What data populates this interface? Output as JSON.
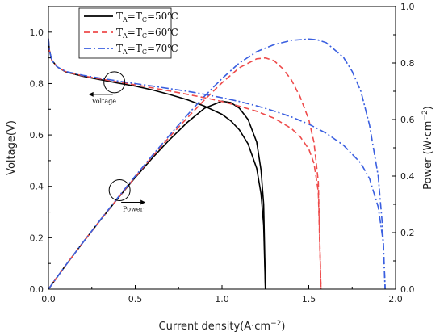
{
  "chart_data": {
    "type": "line",
    "xlabel": "Current density(A·cm",
    "xlabel_sup": "−2",
    "xlabel_close": ")",
    "ylabel_left": "Voltage(V)",
    "ylabel_right": "Power (W·cm",
    "ylabel_right_sup": "−2",
    "ylabel_right_close": ")",
    "xlim": [
      0,
      2.0
    ],
    "ylim_left": [
      0,
      1.1
    ],
    "ylim_right": [
      0,
      1.0
    ],
    "xticks": [
      "0.0",
      "0.5",
      "1.0",
      "1.5",
      "2.0"
    ],
    "yticks_left": [
      "0.0",
      "0.2",
      "0.4",
      "0.6",
      "0.8",
      "1.0"
    ],
    "yticks_right": [
      "0.0",
      "0.2",
      "0.4",
      "0.6",
      "0.8",
      "1.0"
    ],
    "xtick_values": [
      0,
      0.5,
      1.0,
      1.5,
      2.0
    ],
    "ytick_values_left": [
      0,
      0.2,
      0.4,
      0.6,
      0.8,
      1.0
    ],
    "ytick_values_right": [
      0,
      0.2,
      0.4,
      0.6,
      0.8,
      1.0
    ],
    "legend_position": "top-left",
    "legend": [
      {
        "label": "T",
        "sub1": "A",
        "mid": "=T",
        "sub2": "C",
        "rest": "=50℃",
        "color": "#000000",
        "dash": "solid"
      },
      {
        "label": "T",
        "sub1": "A",
        "mid": "=T",
        "sub2": "C",
        "rest": "=60℃",
        "color": "#ee4b4b",
        "dash": "dash"
      },
      {
        "label": "T",
        "sub1": "A",
        "mid": "=T",
        "sub2": "C",
        "rest": "=70℃",
        "color": "#3a5fe0",
        "dash": "dashdot"
      }
    ],
    "annotations": [
      {
        "text": "Voltage",
        "x": 0.38,
        "y_left": 0.805,
        "arrow": "left"
      },
      {
        "text": "Power",
        "x": 0.41,
        "y_left": 0.385,
        "arrow": "right"
      }
    ],
    "series": [
      {
        "axis": "left",
        "color": "#000000",
        "dash": "solid",
        "x": [
          0,
          0.005,
          0.02,
          0.05,
          0.1,
          0.2,
          0.3,
          0.4,
          0.5,
          0.6,
          0.7,
          0.8,
          0.9,
          1.0,
          1.05,
          1.1,
          1.15,
          1.2,
          1.225,
          1.24,
          1.25
        ],
        "y": [
          0.975,
          0.93,
          0.89,
          0.865,
          0.845,
          0.828,
          0.815,
          0.802,
          0.79,
          0.775,
          0.757,
          0.737,
          0.712,
          0.68,
          0.655,
          0.62,
          0.565,
          0.47,
          0.37,
          0.25,
          0.0
        ]
      },
      {
        "axis": "right",
        "color": "#000000",
        "dash": "solid",
        "x": [
          0,
          0.1,
          0.2,
          0.3,
          0.4,
          0.5,
          0.6,
          0.7,
          0.8,
          0.9,
          1.0,
          1.05,
          1.1,
          1.15,
          1.2,
          1.225,
          1.24,
          1.25
        ],
        "y": [
          0,
          0.085,
          0.166,
          0.245,
          0.321,
          0.395,
          0.465,
          0.53,
          0.59,
          0.64,
          0.665,
          0.66,
          0.64,
          0.6,
          0.52,
          0.42,
          0.3,
          0.0
        ]
      },
      {
        "axis": "left",
        "color": "#ee4b4b",
        "dash": "dash",
        "x": [
          0,
          0.005,
          0.02,
          0.05,
          0.1,
          0.2,
          0.3,
          0.4,
          0.5,
          0.6,
          0.7,
          0.8,
          0.9,
          1.0,
          1.1,
          1.2,
          1.3,
          1.4,
          1.45,
          1.5,
          1.53,
          1.555,
          1.57
        ],
        "y": [
          0.975,
          0.93,
          0.89,
          0.865,
          0.846,
          0.83,
          0.818,
          0.806,
          0.795,
          0.783,
          0.771,
          0.758,
          0.745,
          0.73,
          0.712,
          0.692,
          0.665,
          0.625,
          0.593,
          0.545,
          0.49,
          0.38,
          0.0
        ]
      },
      {
        "axis": "right",
        "color": "#ee4b4b",
        "dash": "dash",
        "x": [
          0,
          0.1,
          0.2,
          0.3,
          0.4,
          0.5,
          0.6,
          0.7,
          0.8,
          0.9,
          1.0,
          1.1,
          1.2,
          1.25,
          1.3,
          1.35,
          1.4,
          1.45,
          1.5,
          1.53,
          1.555,
          1.57
        ],
        "y": [
          0,
          0.085,
          0.166,
          0.245,
          0.322,
          0.397,
          0.47,
          0.54,
          0.606,
          0.67,
          0.73,
          0.783,
          0.815,
          0.818,
          0.808,
          0.78,
          0.74,
          0.68,
          0.6,
          0.52,
          0.38,
          0.0
        ]
      },
      {
        "axis": "left",
        "color": "#3a5fe0",
        "dash": "dashdot",
        "x": [
          0,
          0.005,
          0.02,
          0.05,
          0.1,
          0.2,
          0.3,
          0.4,
          0.5,
          0.6,
          0.7,
          0.8,
          0.9,
          1.0,
          1.1,
          1.2,
          1.3,
          1.4,
          1.5,
          1.6,
          1.7,
          1.8,
          1.85,
          1.9,
          1.93,
          1.94
        ],
        "y": [
          0.975,
          0.93,
          0.89,
          0.865,
          0.847,
          0.832,
          0.821,
          0.81,
          0.8,
          0.79,
          0.78,
          0.77,
          0.758,
          0.745,
          0.73,
          0.713,
          0.693,
          0.67,
          0.642,
          0.607,
          0.56,
          0.49,
          0.43,
          0.32,
          0.18,
          0.0
        ]
      },
      {
        "axis": "right",
        "color": "#3a5fe0",
        "dash": "dashdot",
        "x": [
          0,
          0.1,
          0.2,
          0.3,
          0.4,
          0.5,
          0.6,
          0.7,
          0.8,
          0.9,
          1.0,
          1.1,
          1.2,
          1.3,
          1.4,
          1.5,
          1.55,
          1.6,
          1.7,
          1.75,
          1.8,
          1.85,
          1.9,
          1.925,
          1.94
        ],
        "y": [
          0,
          0.085,
          0.166,
          0.246,
          0.324,
          0.4,
          0.474,
          0.546,
          0.616,
          0.683,
          0.745,
          0.8,
          0.84,
          0.865,
          0.88,
          0.885,
          0.882,
          0.872,
          0.82,
          0.77,
          0.7,
          0.58,
          0.4,
          0.22,
          0.0
        ]
      }
    ]
  }
}
